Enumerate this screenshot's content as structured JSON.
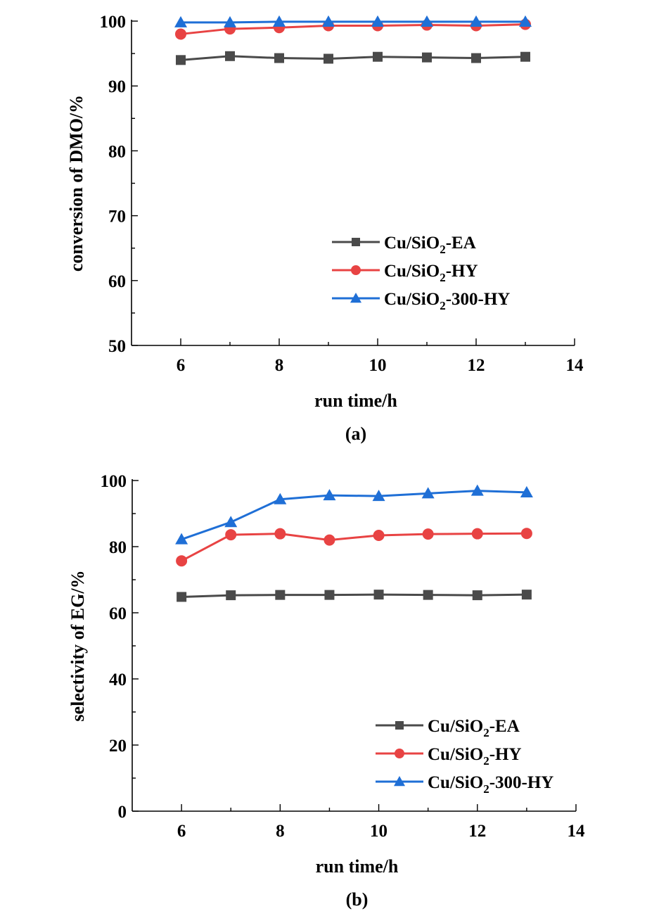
{
  "chart_data": [
    {
      "type": "line",
      "panel_label": "(a)",
      "title": "",
      "xlabel": "run time/h",
      "ylabel": "conversion of DMO/%",
      "xlim": [
        5,
        14
      ],
      "ylim": [
        50,
        100
      ],
      "x_major_ticks": [
        6,
        8,
        10,
        12,
        14
      ],
      "x_minor_ticks": [
        7,
        9,
        11,
        13
      ],
      "y_major_ticks": [
        50,
        60,
        70,
        80,
        90,
        100
      ],
      "y_minor_ticks": [
        55,
        65,
        75,
        85,
        95
      ],
      "grid": false,
      "legend_position": "center-right",
      "x": [
        6,
        7,
        8,
        9,
        10,
        11,
        12,
        13
      ],
      "series": [
        {
          "name": "Cu/SiO2-EA",
          "label_main": "Cu/SiO",
          "label_sub": "2",
          "label_suffix": "-EA",
          "color": "#4a4a4a",
          "marker": "square",
          "values": [
            94.0,
            94.6,
            94.3,
            94.2,
            94.5,
            94.4,
            94.3,
            94.5
          ]
        },
        {
          "name": "Cu/SiO2-HY",
          "label_main": "Cu/SiO",
          "label_sub": "2",
          "label_suffix": "-HY",
          "color": "#e84343",
          "marker": "circle",
          "values": [
            98.0,
            98.8,
            99.0,
            99.3,
            99.3,
            99.4,
            99.3,
            99.5
          ]
        },
        {
          "name": "Cu/SiO2-300-HY",
          "label_main": "Cu/SiO",
          "label_sub": "2",
          "label_suffix": "-300-HY",
          "color": "#1f6fd6",
          "marker": "triangle",
          "values": [
            99.8,
            99.8,
            99.9,
            99.9,
            99.9,
            99.9,
            99.9,
            99.9
          ]
        }
      ]
    },
    {
      "type": "line",
      "panel_label": "(b)",
      "title": "",
      "xlabel": "run time/h",
      "ylabel": "selectivity of EG/%",
      "xlim": [
        5,
        14
      ],
      "ylim": [
        0,
        100
      ],
      "x_major_ticks": [
        6,
        8,
        10,
        12,
        14
      ],
      "x_minor_ticks": [
        7,
        9,
        11,
        13
      ],
      "y_major_ticks": [
        0,
        20,
        40,
        60,
        80,
        100
      ],
      "y_minor_ticks": [
        10,
        30,
        50,
        70,
        90
      ],
      "grid": false,
      "legend_position": "bottom-right",
      "x": [
        6,
        7,
        8,
        9,
        10,
        11,
        12,
        13
      ],
      "series": [
        {
          "name": "Cu/SiO2-EA",
          "label_main": "Cu/SiO",
          "label_sub": "2",
          "label_suffix": "-EA",
          "color": "#4a4a4a",
          "marker": "square",
          "values": [
            64.8,
            65.3,
            65.4,
            65.4,
            65.5,
            65.4,
            65.3,
            65.5
          ]
        },
        {
          "name": "Cu/SiO2-HY",
          "label_main": "Cu/SiO",
          "label_sub": "2",
          "label_suffix": "-HY",
          "color": "#e84343",
          "marker": "circle",
          "values": [
            75.7,
            83.6,
            83.9,
            82.0,
            83.4,
            83.8,
            83.9,
            84.0
          ]
        },
        {
          "name": "Cu/SiO2-300-HY",
          "label_main": "Cu/SiO",
          "label_sub": "2",
          "label_suffix": "-300-HY",
          "color": "#1f6fd6",
          "marker": "triangle",
          "values": [
            82.2,
            87.4,
            94.3,
            95.5,
            95.3,
            96.1,
            96.9,
            96.4
          ]
        }
      ]
    }
  ]
}
